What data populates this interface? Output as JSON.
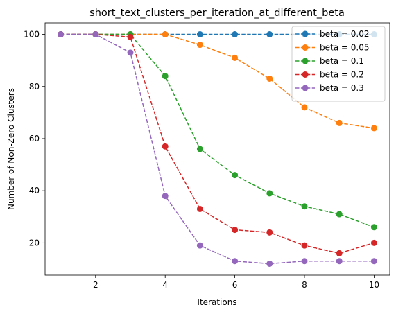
{
  "chart_data": {
    "type": "line",
    "title": "short_text_clusters_per_iteration_at_different_beta",
    "xlabel": "Iterations",
    "ylabel": "Number of Non-Zero Clusters",
    "xlim": [
      0.55,
      10.45
    ],
    "ylim": [
      7.6,
      104.4
    ],
    "xticks": [
      2,
      4,
      6,
      8,
      10
    ],
    "yticks": [
      20,
      40,
      60,
      80,
      100
    ],
    "grid": false,
    "legend_position": "top-right",
    "x": [
      1,
      2,
      3,
      4,
      5,
      6,
      7,
      8,
      9,
      10
    ],
    "series": [
      {
        "name": "beta = 0.02",
        "color": "#1f77b4",
        "values": [
          100,
          100,
          100,
          100,
          100,
          100,
          100,
          100,
          100,
          100
        ]
      },
      {
        "name": "beta = 0.05",
        "color": "#ff7f0e",
        "values": [
          100,
          100,
          100,
          100,
          96,
          91,
          83,
          72,
          66,
          64
        ]
      },
      {
        "name": "beta = 0.1",
        "color": "#2ca02c",
        "values": [
          100,
          100,
          100,
          84,
          56,
          46,
          39,
          34,
          31,
          26
        ]
      },
      {
        "name": "beta = 0.2",
        "color": "#d62728",
        "values": [
          100,
          100,
          99,
          57,
          33,
          25,
          24,
          19,
          16,
          20
        ]
      },
      {
        "name": "beta = 0.3",
        "color": "#9467bd",
        "values": [
          100,
          100,
          93,
          38,
          19,
          13,
          12,
          13,
          13,
          13
        ]
      }
    ]
  }
}
